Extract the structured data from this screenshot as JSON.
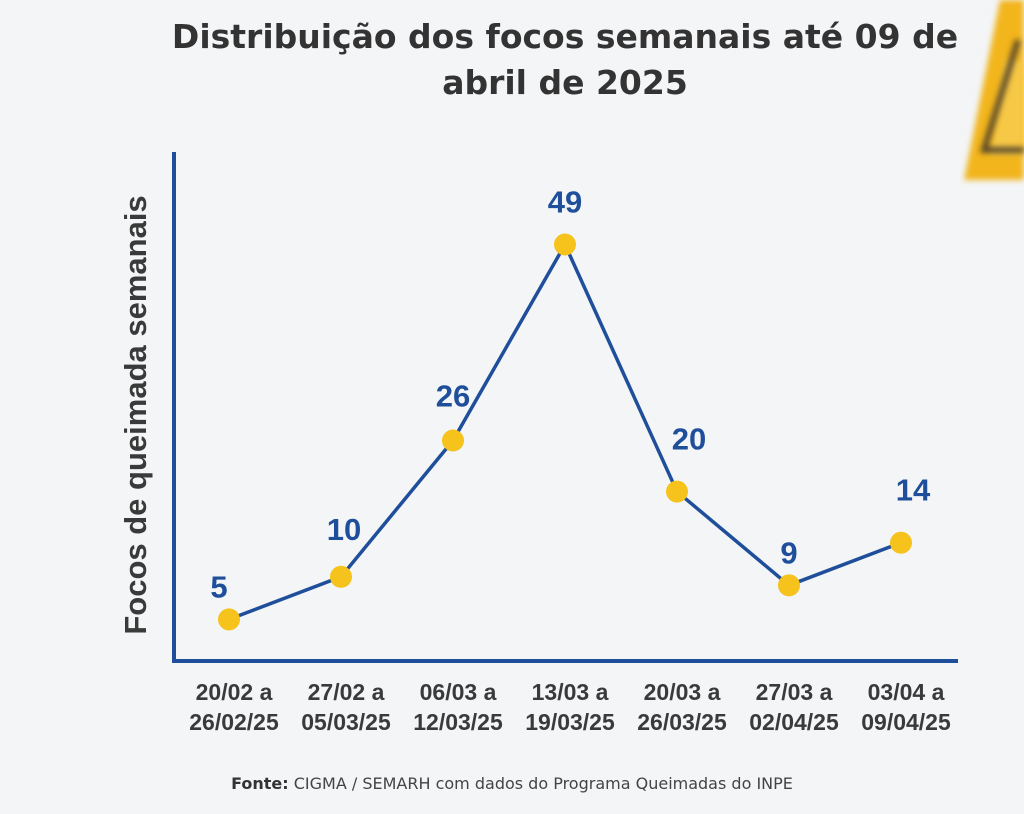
{
  "chart_data": {
    "type": "line",
    "title": "Distribuição dos focos semanais até 09 de abril de 2025",
    "ylabel": "Focos de queimada semanais",
    "xlabel": "",
    "categories": [
      [
        "20/02 a",
        "26/02/25"
      ],
      [
        "27/02 a",
        "05/03/25"
      ],
      [
        "06/03 a",
        "12/03/25"
      ],
      [
        "13/03 a",
        "19/03/25"
      ],
      [
        "20/03 a",
        "26/03/25"
      ],
      [
        "27/03 a",
        "02/04/25"
      ],
      [
        "03/04 a",
        "09/04/25"
      ]
    ],
    "values": [
      5,
      10,
      26,
      49,
      20,
      9,
      14
    ],
    "ylim": [
      0,
      55
    ],
    "grid": false,
    "colors": {
      "line": "#1f4e9a",
      "marker": "#f6c21c",
      "axis": "#1f4e9a",
      "tick": "#3a3a3a"
    }
  },
  "source": {
    "label": "Fonte:",
    "text": " CIGMA / SEMARH com dados do Programa Queimadas do INPE"
  }
}
